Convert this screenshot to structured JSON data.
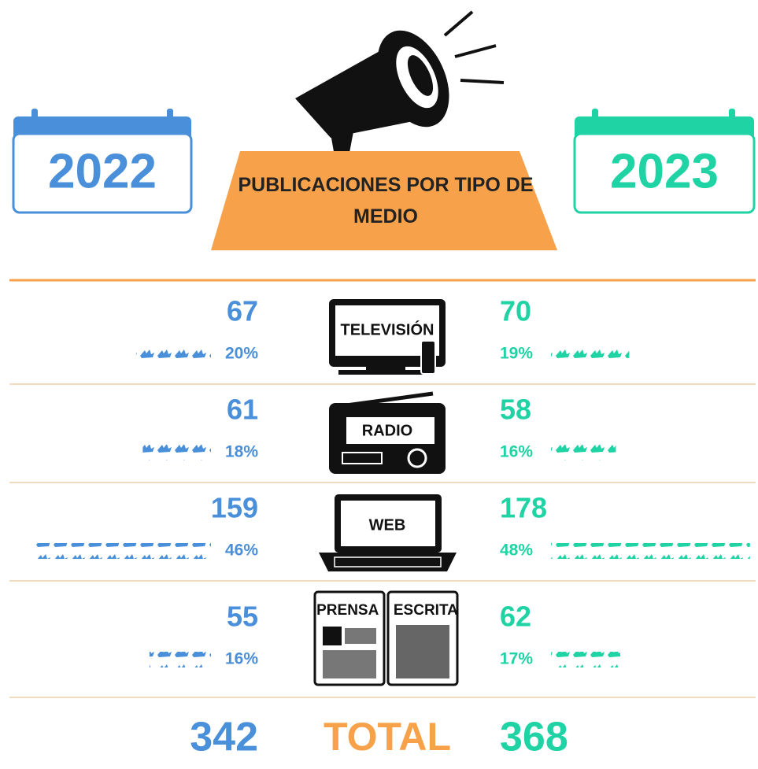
{
  "chart_data": {
    "type": "pictogram",
    "title": "PUBLICACIONES POR TIPO DE MEDIO",
    "categories": [
      "TELEVISIÓN",
      "RADIO",
      "WEB",
      "PRENSA ESCRITA"
    ],
    "series": [
      {
        "name": "2022",
        "color": "#4a8fd9",
        "values": [
          67,
          61,
          159,
          55
        ],
        "percents": [
          20,
          18,
          46,
          16
        ],
        "percent_labels": [
          "20%",
          "18%",
          "46%",
          "16%"
        ],
        "total": 342
      },
      {
        "name": "2023",
        "color": "#1fd3a4",
        "values": [
          70,
          58,
          178,
          62
        ],
        "percents": [
          19,
          16,
          48,
          17
        ],
        "percent_labels": [
          "19%",
          "16%",
          "48%",
          "17%"
        ],
        "total": 368
      }
    ],
    "total_label": "TOTAL"
  }
}
